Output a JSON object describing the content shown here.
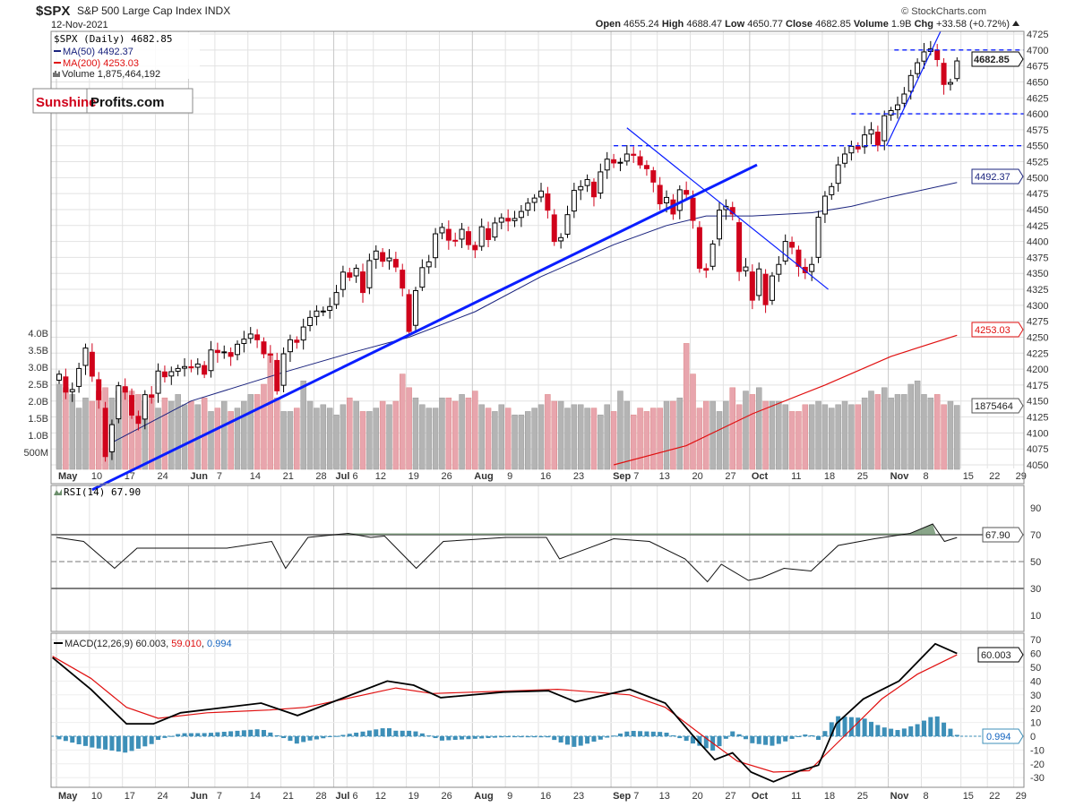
{
  "header": {
    "symbol": "$SPX",
    "name": "S&P 500 Large Cap Index INDX",
    "date": "12-Nov-2021",
    "copyright": "© StockCharts.com",
    "quote": {
      "open_label": "Open",
      "open": "4655.24",
      "high_label": "High",
      "high": "4688.47",
      "low_label": "Low",
      "low": "4650.77",
      "close_label": "Close",
      "close": "4682.85",
      "volume_label": "Volume",
      "volume": "1.9B",
      "chg_label": "Chg",
      "chg": "+33.58 (+0.72%)",
      "chg_icon": "triangle-up-icon"
    }
  },
  "legend": {
    "price": "$SPX (Daily) 4682.85",
    "ma50": "MA(50) 4492.37",
    "ma200": "MA(200) 4253.03",
    "volume": "Volume 1,875,464,192"
  },
  "logo": {
    "part1": "Sunshine",
    "part2": "Profits.com"
  },
  "tags": {
    "close": "4682.85",
    "ma50": "4492.37",
    "ma200": "4253.03",
    "volume": "1875464",
    "rsi": "67.90",
    "macd": "60.003",
    "hist": "0.994"
  },
  "colors": {
    "up": "#000000",
    "down": "#d0021b",
    "ma50": "#1a237e",
    "ma200": "#e01010",
    "trend": "#0a1eff",
    "vol_up": "#b4b4b4",
    "vol_down": "#e8a5ad",
    "rsi_fill": "#6b8e6b",
    "macd": "#000000",
    "signal": "#e01010",
    "hist": "#3d8fb8"
  },
  "chart_data": [
    {
      "type": "candlestick",
      "title": "$SPX S&P 500 Large Cap Index INDX (Daily)",
      "price_ticks": [
        4050,
        4075,
        4100,
        4125,
        4150,
        4175,
        4200,
        4225,
        4250,
        4275,
        4300,
        4325,
        4350,
        4375,
        4400,
        4425,
        4450,
        4475,
        4500,
        4525,
        4550,
        4575,
        4600,
        4625,
        4650,
        4675,
        4700,
        4725
      ],
      "price_ylim": [
        4050,
        4725
      ],
      "volume_ticks": [
        {
          "v": 0.5,
          "label": "500M"
        },
        {
          "v": 1.0,
          "label": "1.0B"
        },
        {
          "v": 1.5,
          "label": "1.5B"
        },
        {
          "v": 2.0,
          "label": "2.0B"
        },
        {
          "v": 2.5,
          "label": "2.5B"
        },
        {
          "v": 3.0,
          "label": "3.0B"
        },
        {
          "v": 3.5,
          "label": "3.5B"
        },
        {
          "v": 4.0,
          "label": "4.0B"
        }
      ],
      "x_ticks": [
        {
          "i": 0,
          "label": "May",
          "bold": true
        },
        {
          "i": 5,
          "label": "10"
        },
        {
          "i": 10,
          "label": "17"
        },
        {
          "i": 15,
          "label": "24"
        },
        {
          "i": 20,
          "label": "Jun",
          "bold": true
        },
        {
          "i": 24,
          "label": "7"
        },
        {
          "i": 29,
          "label": "14"
        },
        {
          "i": 34,
          "label": "21"
        },
        {
          "i": 39,
          "label": "28"
        },
        {
          "i": 42,
          "label": "Jul",
          "bold": true
        },
        {
          "i": 44,
          "label": "6"
        },
        {
          "i": 48,
          "label": "12"
        },
        {
          "i": 53,
          "label": "19"
        },
        {
          "i": 58,
          "label": "26"
        },
        {
          "i": 63,
          "label": "Aug",
          "bold": true
        },
        {
          "i": 68,
          "label": "9"
        },
        {
          "i": 73,
          "label": "16"
        },
        {
          "i": 78,
          "label": "23"
        },
        {
          "i": 84,
          "label": "Sep",
          "bold": true
        },
        {
          "i": 87,
          "label": "7"
        },
        {
          "i": 91,
          "label": "13"
        },
        {
          "i": 96,
          "label": "20"
        },
        {
          "i": 101,
          "label": "27"
        },
        {
          "i": 105,
          "label": "Oct",
          "bold": true
        },
        {
          "i": 111,
          "label": "11"
        },
        {
          "i": 116,
          "label": "18"
        },
        {
          "i": 121,
          "label": "25"
        },
        {
          "i": 126,
          "label": "Nov",
          "bold": true
        },
        {
          "i": 131,
          "label": "8"
        },
        {
          "i": 137,
          "label": "15"
        },
        {
          "i": 141,
          "label": "22"
        },
        {
          "i": 145,
          "label": "29"
        }
      ],
      "prev_close": 4181,
      "closes": [
        4192,
        4164,
        4168,
        4201,
        4233,
        4189,
        4152,
        4063,
        4113,
        4174,
        4164,
        4128,
        4115,
        4160,
        4156,
        4197,
        4188,
        4196,
        4201,
        4204,
        4202,
        4208,
        4192,
        4230,
        4226,
        4227,
        4220,
        4239,
        4247,
        4255,
        4246,
        4224,
        4222,
        4166,
        4224,
        4246,
        4242,
        4266,
        4281,
        4291,
        4291,
        4298,
        4320,
        4352,
        4344,
        4358,
        4320,
        4370,
        4385,
        4369,
        4374,
        4360,
        4327,
        4259,
        4323,
        4359,
        4368,
        4412,
        4422,
        4402,
        4401,
        4419,
        4395,
        4387,
        4423,
        4403,
        4429,
        4437,
        4432,
        4436,
        4447,
        4460,
        4468,
        4479,
        4449,
        4400,
        4406,
        4442,
        4480,
        4486,
        4497,
        4470,
        4509,
        4529,
        4523,
        4524,
        4537,
        4535,
        4520,
        4514,
        4493,
        4459,
        4469,
        4443,
        4481,
        4474,
        4433,
        4358,
        4355,
        4396,
        4449,
        4455,
        4443,
        4353,
        4360,
        4308,
        4357,
        4301,
        4346,
        4364,
        4400,
        4391,
        4361,
        4351,
        4364,
        4438,
        4471,
        4486,
        4520,
        4537,
        4549,
        4545,
        4567,
        4575,
        4551,
        4597,
        4605,
        4614,
        4631,
        4660,
        4680,
        4697,
        4702,
        4685,
        4646,
        4649,
        4682.85
      ],
      "last_ohlc": [
        4655.24,
        4688.47,
        4650.77,
        4682.85
      ],
      "volumes_billions": [
        2.5,
        2.4,
        2.2,
        1.8,
        2.1,
        2.0,
        2.3,
        2.4,
        2.1,
        2.3,
        2.4,
        2.3,
        2.2,
        2.0,
        2.2,
        1.8,
        2.1,
        2.0,
        2.2,
        1.9,
        2.0,
        1.9,
        2.1,
        1.7,
        1.8,
        2.0,
        1.7,
        1.8,
        2.0,
        2.2,
        2.2,
        2.5,
        3.4,
        2.1,
        1.7,
        1.7,
        1.8,
        2.6,
        2.0,
        1.8,
        1.9,
        1.8,
        1.6,
        1.9,
        2.1,
        2.0,
        1.7,
        1.7,
        1.8,
        2.0,
        1.9,
        2.0,
        2.8,
        2.4,
        2.1,
        1.9,
        1.8,
        1.8,
        2.1,
        2.1,
        2.0,
        2.2,
        2.1,
        2.3,
        1.9,
        1.8,
        1.7,
        1.9,
        1.8,
        1.6,
        1.6,
        1.7,
        1.8,
        1.9,
        2.2,
        2.0,
        2.0,
        1.8,
        1.9,
        1.9,
        1.8,
        1.8,
        1.6,
        1.9,
        1.7,
        2.3,
        2.0,
        1.6,
        1.8,
        1.7,
        1.8,
        1.8,
        2.0,
        2.0,
        2.1,
        3.7,
        2.8,
        1.8,
        2.0,
        2.0,
        1.7,
        2.0,
        2.4,
        1.9,
        2.3,
        2.2,
        2.4,
        2.0,
        2.0,
        2.0,
        1.9,
        1.7,
        1.7,
        1.9,
        1.9,
        2.0,
        1.9,
        1.8,
        1.9,
        2.0,
        1.9,
        1.9,
        2.1,
        2.3,
        2.2,
        2.4,
        2.1,
        2.2,
        2.2,
        2.5,
        2.6,
        2.2,
        2.1,
        2.2,
        1.9,
        2.0,
        1.88
      ],
      "ma50": [
        [
          8,
          4085
        ],
        [
          20,
          4150
        ],
        [
          34,
          4195
        ],
        [
          44,
          4225
        ],
        [
          53,
          4250
        ],
        [
          63,
          4290
        ],
        [
          73,
          4345
        ],
        [
          84,
          4395
        ],
        [
          92,
          4425
        ],
        [
          98,
          4440
        ],
        [
          105,
          4440
        ],
        [
          114,
          4445
        ],
        [
          120,
          4455
        ],
        [
          126,
          4470
        ],
        [
          136,
          4492.37
        ]
      ],
      "ma200": [
        [
          84,
          4050
        ],
        [
          95,
          4080
        ],
        [
          105,
          4130
        ],
        [
          116,
          4175
        ],
        [
          126,
          4220
        ],
        [
          136,
          4253.03
        ]
      ],
      "annotations": [
        {
          "kind": "trendline",
          "width": 3,
          "from": [
            5,
            4011
          ],
          "to": [
            105.7,
            4520
          ]
        },
        {
          "kind": "trendline",
          "width": 1.2,
          "from": [
            86,
            4578
          ],
          "to": [
            116.5,
            4325
          ]
        },
        {
          "kind": "trendline",
          "width": 1.2,
          "from": [
            125.3,
            4550
          ],
          "to": [
            133.5,
            4729
          ]
        },
        {
          "kind": "hline",
          "price": 4550,
          "from": 84
        },
        {
          "kind": "hline",
          "price": 4600,
          "from": 120
        },
        {
          "kind": "hline",
          "price": 4700,
          "from": 126.5
        }
      ]
    },
    {
      "type": "line",
      "title": "RSI(14) 67.90",
      "label": "RSI(14) 67.90",
      "ticks": [
        10,
        30,
        50,
        70,
        90
      ],
      "ylim": [
        0,
        100
      ],
      "levels": [
        30,
        70
      ],
      "series": [
        [
          -0.4,
          68
        ],
        [
          3.7,
          65
        ],
        [
          8.4,
          45
        ],
        [
          11.8,
          60
        ],
        [
          18.6,
          60
        ],
        [
          25.4,
          60
        ],
        [
          32.2,
          65
        ],
        [
          34.3,
          45
        ],
        [
          37.7,
          68
        ],
        [
          43.8,
          71
        ],
        [
          47.2,
          68
        ],
        [
          49.3,
          69
        ],
        [
          54.1,
          45
        ],
        [
          58.2,
          65
        ],
        [
          67.7,
          68
        ],
        [
          73.8,
          68
        ],
        [
          75.8,
          52
        ],
        [
          84,
          67
        ],
        [
          89.4,
          65
        ],
        [
          94.8,
          52
        ],
        [
          98.2,
          35
        ],
        [
          100.3,
          48
        ],
        [
          104.4,
          36
        ],
        [
          106.4,
          38
        ],
        [
          109.8,
          45
        ],
        [
          113.9,
          43
        ],
        [
          118,
          62
        ],
        [
          123.5,
          67
        ],
        [
          128.9,
          71
        ],
        [
          132.3,
          78
        ],
        [
          134.1,
          65
        ],
        [
          136,
          67.9
        ]
      ]
    },
    {
      "type": "line",
      "title": "MACD(12,26,9) 60.003, 59.010, 0.994",
      "label_macd": "MACD(12,26,9) 60.003",
      "label_signal": "59.010",
      "label_hist": "0.994",
      "ticks": [
        -30,
        -20,
        -10,
        0,
        10,
        20,
        30,
        40,
        50,
        60,
        70
      ],
      "ylim": [
        -35,
        75
      ],
      "macd": [
        [
          -1,
          57
        ],
        [
          4.8,
          34
        ],
        [
          10.2,
          9
        ],
        [
          14.3,
          9
        ],
        [
          18.4,
          17
        ],
        [
          30.6,
          24
        ],
        [
          36.1,
          15
        ],
        [
          41.5,
          25
        ],
        [
          49.7,
          40
        ],
        [
          53.7,
          37
        ],
        [
          57.8,
          28
        ],
        [
          67.3,
          32
        ],
        [
          74.1,
          33
        ],
        [
          78.2,
          25
        ],
        [
          86.4,
          34
        ],
        [
          91.8,
          24
        ],
        [
          95.9,
          1
        ],
        [
          99.3,
          -17
        ],
        [
          102,
          -12
        ],
        [
          104.8,
          -26
        ],
        [
          108.2,
          -33
        ],
        [
          112.2,
          -25
        ],
        [
          115,
          -21
        ],
        [
          117.7,
          9
        ],
        [
          121.8,
          27
        ],
        [
          127.2,
          40
        ],
        [
          132.7,
          67
        ],
        [
          136,
          60.003
        ]
      ],
      "signal": [
        [
          -1,
          58
        ],
        [
          4.8,
          42
        ],
        [
          10.2,
          21
        ],
        [
          15,
          13
        ],
        [
          22.4,
          17
        ],
        [
          31.9,
          19
        ],
        [
          37.4,
          21
        ],
        [
          51,
          35
        ],
        [
          56.5,
          31
        ],
        [
          75.5,
          34
        ],
        [
          86.4,
          30
        ],
        [
          91.8,
          21
        ],
        [
          97.3,
          1
        ],
        [
          102.7,
          -18
        ],
        [
          108.2,
          -26
        ],
        [
          113.6,
          -25
        ],
        [
          119.1,
          1
        ],
        [
          124.6,
          27
        ],
        [
          130,
          45
        ],
        [
          136,
          59.01
        ]
      ]
    }
  ]
}
